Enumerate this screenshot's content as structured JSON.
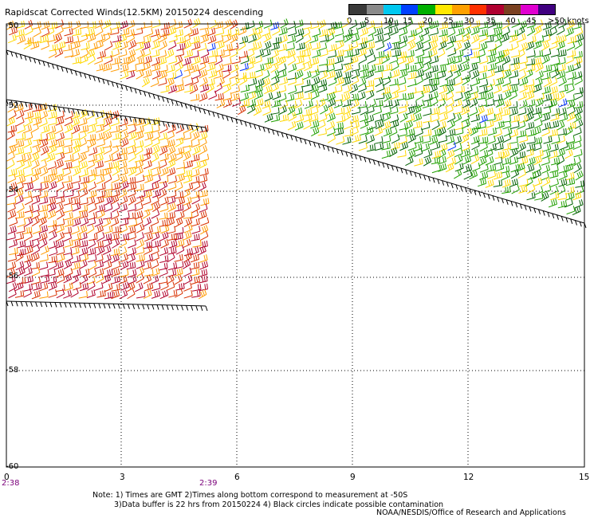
{
  "title": "Rapidscat Corrected Winds(12.5KM) 20150224 descending",
  "legend": {
    "labels": [
      "0",
      "5",
      "10",
      "15",
      "20",
      "25",
      "30",
      "35",
      "40",
      "45",
      ">50 knots"
    ],
    "colors": [
      "#3a3a3a",
      "#8a8a8a",
      "#00c8f0",
      "#0040ff",
      "#00b000",
      "#ffe800",
      "#ffa000",
      "#ff3000",
      "#b00030",
      "#7a4020",
      "#e000d0",
      "#400080"
    ]
  },
  "axes": {
    "x_ticks": [
      "0",
      "3",
      "6",
      "9",
      "12",
      "15"
    ],
    "y_ticks": [
      "-50",
      "-52",
      "-54",
      "-56",
      "-58",
      "-60"
    ]
  },
  "times": {
    "left": "2:38",
    "right": "2:39"
  },
  "notes": {
    "line1": "Note: 1) Times are GMT 2)Times along bottom correspond to measurement at -50S",
    "line2": "3)Data buffer is 22 hrs from 20150224 4) Black circles indicate possible contamination"
  },
  "credit": "NOAA/NESDIS/Office of Research and Applications"
}
